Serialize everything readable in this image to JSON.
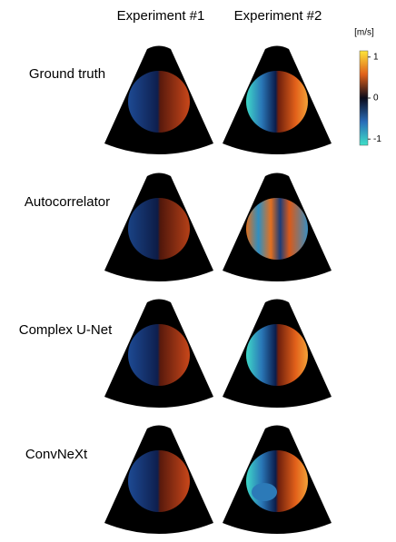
{
  "columns": [
    "Experiment #1",
    "Experiment #2"
  ],
  "rows": [
    "Ground truth",
    "Autocorrelator",
    "Complex U-Net",
    "ConvNeXt"
  ],
  "colorbar": {
    "label": "[m/s]",
    "lim": [
      -1.15,
      1.15
    ],
    "ticks": [
      1,
      0,
      -1
    ]
  }
}
